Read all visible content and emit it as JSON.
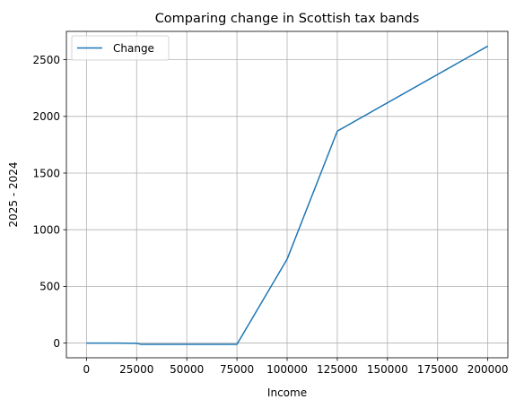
{
  "chart_data": {
    "type": "line",
    "title": "Comparing change in Scottish tax bands",
    "xlabel": "Income",
    "ylabel": "2025 - 2024",
    "xlim": [
      -10000,
      210000
    ],
    "ylim": [
      -130,
      2750
    ],
    "xticks": [
      0,
      25000,
      50000,
      75000,
      100000,
      125000,
      150000,
      175000,
      200000
    ],
    "xtick_labels": [
      "0",
      "25000",
      "50000",
      "75000",
      "100000",
      "125000",
      "150000",
      "175000",
      "200000"
    ],
    "yticks": [
      0,
      500,
      1000,
      1500,
      2000,
      2500
    ],
    "ytick_labels": [
      "0",
      "500",
      "1000",
      "1500",
      "2000",
      "2500"
    ],
    "grid": true,
    "legend": "upper-left",
    "series": [
      {
        "name": "Change",
        "color": "#1f77b4",
        "x": [
          0,
          12570,
          15000,
          25000,
          27000,
          50000,
          75000,
          100000,
          125000,
          200000
        ],
        "y": [
          0,
          0,
          0,
          -2,
          -11,
          -11,
          -11,
          740,
          1870,
          2620
        ]
      }
    ]
  }
}
